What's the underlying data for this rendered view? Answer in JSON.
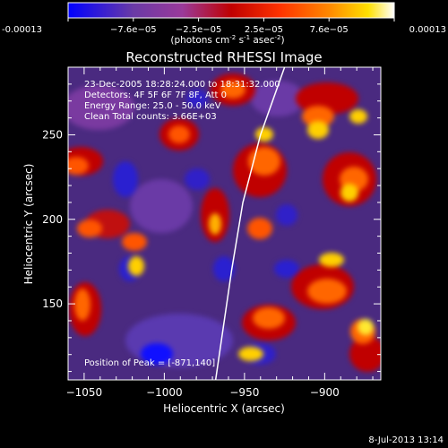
{
  "colorbar": {
    "min": -0.00013,
    "max": 0.00013,
    "tick_labels": [
      "-0.00013",
      "−7.6e−05",
      "−2.5e−05",
      "2.5e−05",
      "7.6e−05",
      "0.00013"
    ],
    "unit_parts": {
      "prefix": "(photons cm",
      "exp1": "-2",
      "mid": " s",
      "exp2": "-1",
      "mid2": " asec",
      "exp3": "-2",
      "suffix": ")"
    },
    "colors": [
      "#0000ff",
      "#6a3aa6",
      "#9a3a9a",
      "#c00000",
      "#ff3300",
      "#ff8800",
      "#ffe000",
      "#ffffff"
    ]
  },
  "chart_data": {
    "type": "heatmap",
    "title": "Reconstructed RHESSI Image",
    "xlabel": "Heliocentric X (arcsec)",
    "ylabel": "Heliocentric Y (arcsec)",
    "xlim": [
      -1060,
      -865
    ],
    "ylim": [
      105,
      290
    ],
    "x_ticks": [
      -1050,
      -1000,
      -950,
      -900
    ],
    "y_ticks": [
      150,
      200,
      250
    ],
    "info_lines": [
      "23-Dec-2005 18:28:24.000 to 18:31:32.000",
      "Detectors: 4F 5F 6F 7F 8F, Att 0",
      "Energy Range: 25.0 - 50.0 keV",
      "Clean    Total counts: 3.66E+03"
    ],
    "peak_label": "Position of Peak = [-871,140]",
    "peak_position": [
      -871,
      140
    ],
    "total_counts": 3660,
    "limb_curve_points": [
      [
        -968,
        105
      ],
      [
        -958,
        170
      ],
      [
        -951,
        210
      ],
      [
        -940,
        250
      ],
      [
        -925,
        290
      ]
    ]
  },
  "footer": {
    "timestamp": "8-Jul-2013 13:14"
  }
}
